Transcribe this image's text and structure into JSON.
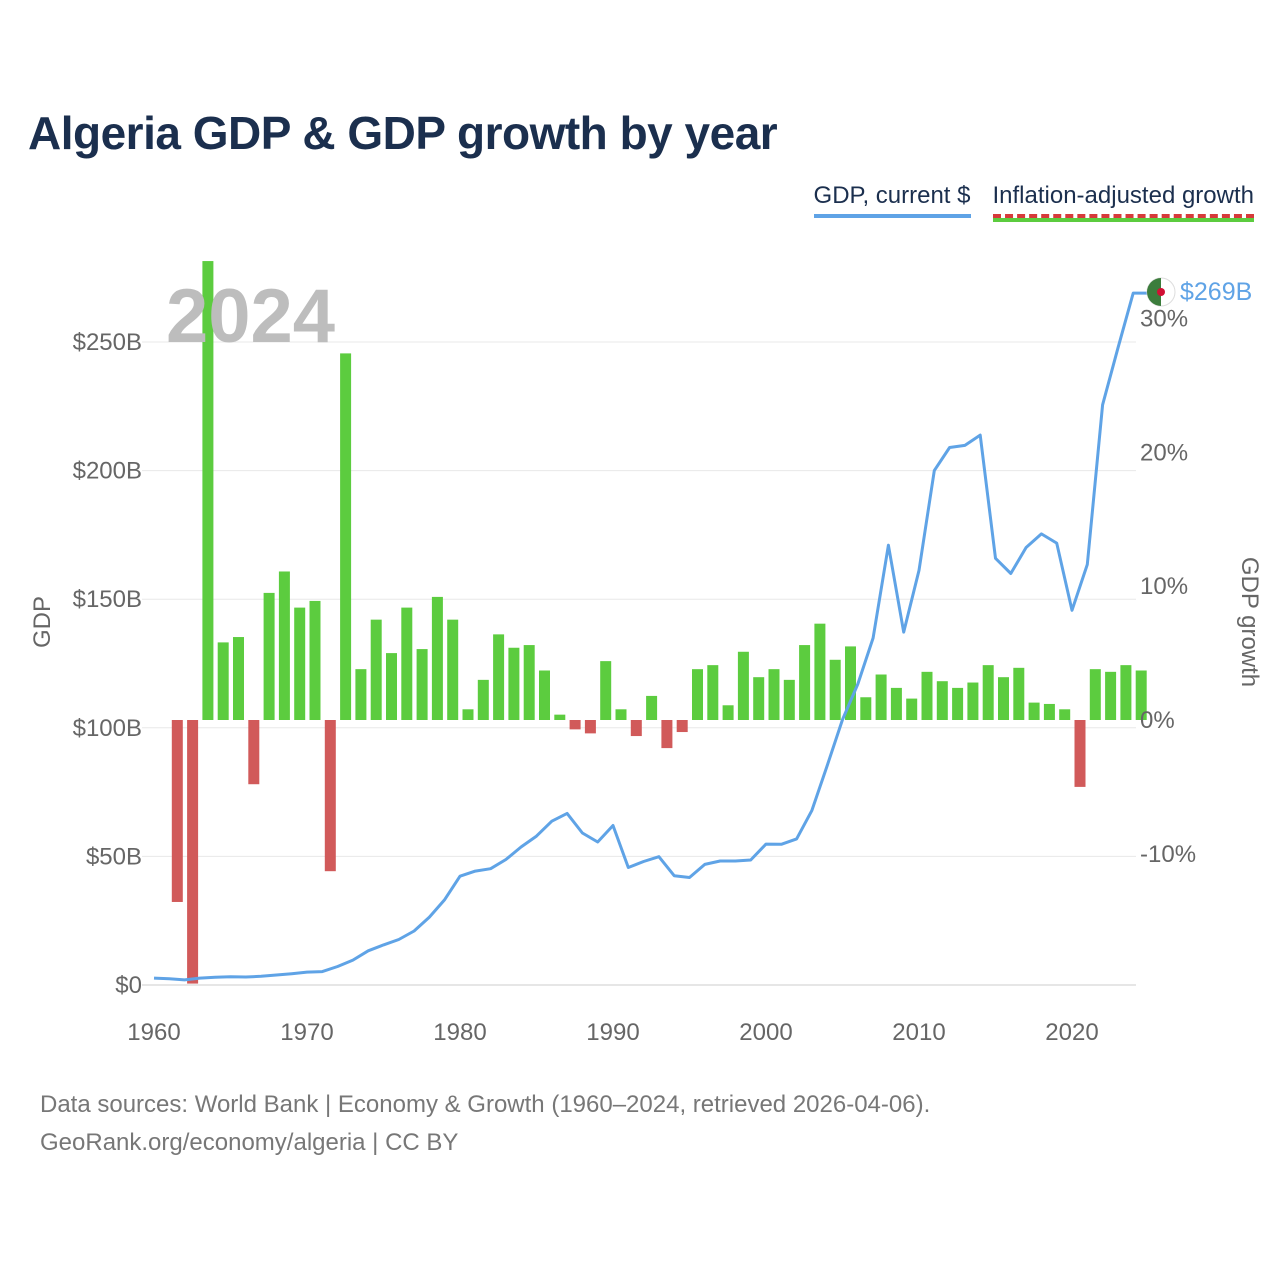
{
  "title": "Algeria GDP & GDP growth by year",
  "legend": {
    "gdp": "GDP, current $",
    "growth": "Inflation-adjusted growth"
  },
  "year_label": "2024",
  "end_label": "$269B",
  "footer": {
    "sources": "Data sources: World Bank | Economy & Growth (1960–2024, retrieved 2026-04-06).",
    "link": "GeoRank.org/economy/algeria | CC BY"
  },
  "colors": {
    "gdp_line": "#5fa3e6",
    "positive_bar": "#5ccc3f",
    "negative_bar": "#d15a5a",
    "title": "#1b2f4e"
  },
  "chart_data": {
    "type": "bar+line",
    "title": "Algeria GDP & GDP growth by year",
    "xlabel": "",
    "ylabel_left": "GDP",
    "ylabel_right": "GDP growth",
    "x_ticks": [
      1960,
      1970,
      1980,
      1990,
      2000,
      2010,
      2020
    ],
    "y_left_ticks": [
      "$0",
      "$50B",
      "$100B",
      "$150B",
      "$200B",
      "$250B"
    ],
    "y_left_tick_values": [
      0,
      50,
      100,
      150,
      200,
      250
    ],
    "y_right_ticks": [
      "-10%",
      "0%",
      "10%",
      "20%",
      "30%"
    ],
    "y_right_tick_values": [
      -10,
      0,
      10,
      20,
      30
    ],
    "ylim_left": [
      0,
      250
    ],
    "ylim_right": [
      -20,
      30
    ],
    "years": [
      1960,
      1961,
      1962,
      1963,
      1964,
      1965,
      1966,
      1967,
      1968,
      1969,
      1970,
      1971,
      1972,
      1973,
      1974,
      1975,
      1976,
      1977,
      1978,
      1979,
      1980,
      1981,
      1982,
      1983,
      1984,
      1985,
      1986,
      1987,
      1988,
      1989,
      1990,
      1991,
      1992,
      1993,
      1994,
      1995,
      1996,
      1997,
      1998,
      1999,
      2000,
      2001,
      2002,
      2003,
      2004,
      2005,
      2006,
      2007,
      2008,
      2009,
      2010,
      2011,
      2012,
      2013,
      2014,
      2015,
      2016,
      2017,
      2018,
      2019,
      2020,
      2021,
      2022,
      2023,
      2024
    ],
    "series": [
      {
        "name": "GDP, current $ (billions)",
        "axis": "left",
        "kind": "line",
        "values": [
          2.7,
          2.4,
          2.0,
          2.7,
          3.0,
          3.2,
          3.1,
          3.4,
          3.9,
          4.4,
          5.0,
          5.2,
          7.2,
          9.7,
          13.3,
          15.6,
          17.7,
          21.0,
          26.4,
          33.2,
          42.3,
          44.3,
          45.2,
          48.8,
          53.7,
          57.9,
          63.7,
          66.7,
          59.1,
          55.6,
          62.0,
          45.7,
          48.0,
          49.9,
          42.5,
          41.8,
          46.9,
          48.2,
          48.2,
          48.6,
          54.8,
          54.7,
          56.8,
          67.9,
          85.3,
          103.2,
          117.0,
          134.9,
          171.0,
          137.2,
          161.2,
          200.0,
          209.0,
          209.8,
          213.8,
          165.9,
          160.0,
          170.1,
          175.4,
          171.8,
          145.7,
          163.5,
          225.6,
          247.6,
          269.0
        ]
      },
      {
        "name": "Inflation-adjusted growth (%)",
        "axis": "right",
        "kind": "bar",
        "values": [
          null,
          -13.6,
          -19.7,
          34.3,
          5.8,
          6.2,
          -4.8,
          9.5,
          11.1,
          8.4,
          8.9,
          -11.3,
          27.4,
          3.8,
          7.5,
          5.0,
          8.4,
          5.3,
          9.2,
          7.5,
          0.8,
          3.0,
          6.4,
          5.4,
          5.6,
          3.7,
          0.4,
          -0.7,
          -1.0,
          4.4,
          0.8,
          -1.2,
          1.8,
          -2.1,
          -0.9,
          3.8,
          4.1,
          1.1,
          5.1,
          3.2,
          3.8,
          3.0,
          5.6,
          7.2,
          4.5,
          5.5,
          1.7,
          3.4,
          2.4,
          1.6,
          3.6,
          2.9,
          2.4,
          2.8,
          4.1,
          3.2,
          3.9,
          1.3,
          1.2,
          0.8,
          -5.0,
          3.8,
          3.6,
          4.1,
          3.7
        ]
      }
    ],
    "annotations": [
      "2024",
      "$269B"
    ]
  }
}
